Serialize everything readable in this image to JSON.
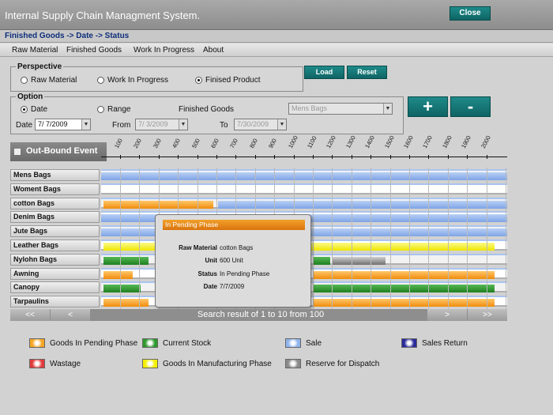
{
  "app": {
    "title": "Internal Supply Chain Managment System.",
    "close_label": "Close"
  },
  "breadcrumb": "Finished Goods -> Date -> Status",
  "menu": [
    "Raw Material",
    "Finished Goods",
    "Work In Progress",
    "About"
  ],
  "perspective": {
    "title": "Perspective",
    "options": [
      "Raw Material",
      "Work In Progress",
      "Finised Product"
    ],
    "selected": "Finised Product",
    "load_label": "Load",
    "reset_label": "Reset"
  },
  "option": {
    "title": "Option",
    "date_label": "Date",
    "range_label": "Range",
    "selected": "Date",
    "finished_goods_label": "Finished Goods",
    "finished_goods_value": "Mens Bags",
    "date_field_label": "Date",
    "date_value": "7/ 7/2009",
    "from_label": "From",
    "from_value": "7/ 3/2009",
    "to_label": "To",
    "to_value": "7/30/2009",
    "zoom_in": "+",
    "zoom_out": "-"
  },
  "timeline": {
    "header": "Out-Bound Event",
    "ticks": [
      "100",
      "200",
      "300",
      "400",
      "500",
      "600",
      "700",
      "800",
      "900",
      "1000",
      "1100",
      "1200",
      "1300",
      "1400",
      "1500",
      "1600",
      "1700",
      "1800",
      "1900",
      "2000"
    ],
    "rows": [
      "Mens Bags",
      "Woment Bags",
      "cotton Bags",
      "Denim Bags",
      "Jute Bags",
      "Leather Bags",
      "Nylohn Bags",
      "Awning",
      "Canopy",
      "Tarpaulins"
    ]
  },
  "popup": {
    "title": "In Pending Phase",
    "raw_material_label": "Raw Material",
    "raw_material_value": "cotton Bags",
    "unit_label": "Unit",
    "unit_value": "600 Unit",
    "status_label": "Status",
    "status_value": "In Pending Phase",
    "date_label": "Date",
    "date_value": "7/7/2009"
  },
  "pager": {
    "first": "<<",
    "prev": "<",
    "result": "Search result of 1 to 10 from 100",
    "next": ">",
    "last": ">>"
  },
  "legend": [
    {
      "label": "Goods In Pending Phase",
      "color": "#f5a623"
    },
    {
      "label": "Current Stock",
      "color": "#2e9a2e"
    },
    {
      "label": "Sale",
      "color": "#8fb4ec"
    },
    {
      "label": "Sales Return",
      "color": "#2a2a9a"
    },
    {
      "label": "Wastage",
      "color": "#e23b3b"
    },
    {
      "label": "Goods In Manufacturing Phase",
      "color": "#f4f000"
    },
    {
      "label": "Reserve for Dispatch",
      "color": "#8a8a8a"
    }
  ]
}
